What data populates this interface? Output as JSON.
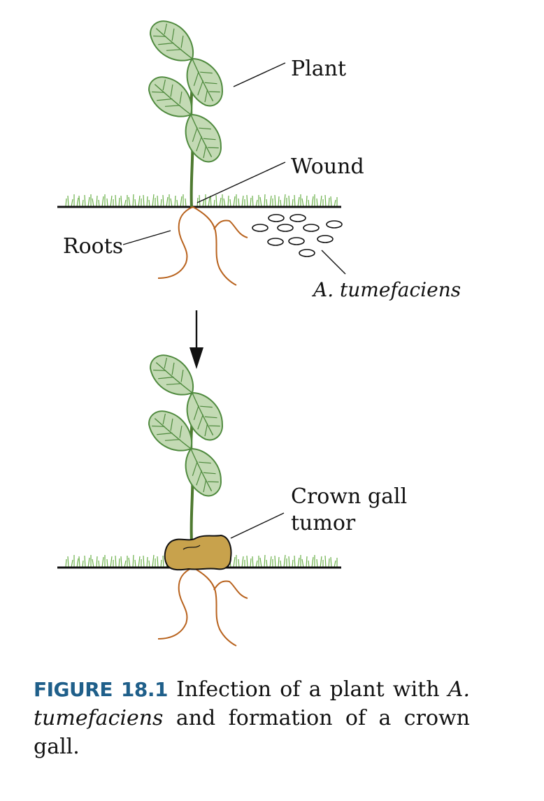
{
  "labels": {
    "plant": "Plant",
    "wound": "Wound",
    "roots": "Roots",
    "bacteria": "A. tumefaciens",
    "gall_line1": "Crown gall",
    "gall_line2": "tumor"
  },
  "caption": {
    "figure_number": "FIGURE 18.1",
    "text_1": "Infection of a plant with ",
    "italic_1": "A. tumefaciens",
    "text_2": " and formation of a crown gall."
  },
  "colors": {
    "leaf_fill": "#c3dab4",
    "leaf_stroke": "#4f8a3e",
    "stem": "#4e7a30",
    "grass": "#6bb04a",
    "root": "#b8621d",
    "gall": "#c8a24c",
    "figure_number": "#1f5f8a"
  }
}
